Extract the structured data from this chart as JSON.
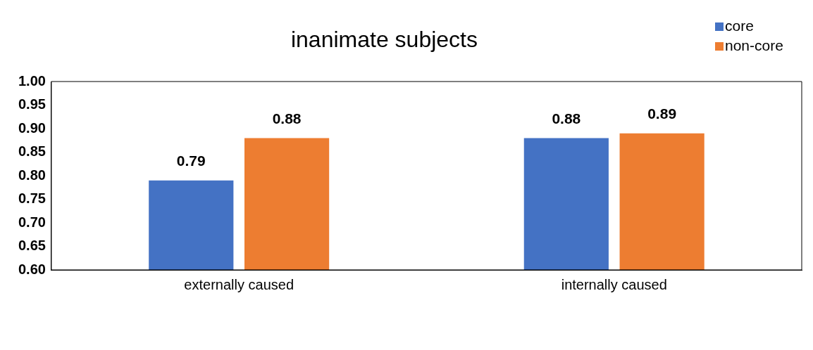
{
  "chart_data": {
    "type": "bar",
    "title": "inanimate subjects",
    "categories": [
      "externally caused",
      "internally caused"
    ],
    "series": [
      {
        "name": "core",
        "color": "#4472c4",
        "values": [
          0.79,
          0.88
        ]
      },
      {
        "name": "non-core",
        "color": "#ed7d31",
        "values": [
          0.88,
          0.89
        ]
      }
    ],
    "ylim": [
      0.6,
      1.0
    ],
    "yticks": [
      {
        "value": 0.6,
        "label": "0.60"
      },
      {
        "value": 0.65,
        "label": "0.65"
      },
      {
        "value": 0.7,
        "label": "0.70"
      },
      {
        "value": 0.75,
        "label": "0.75"
      },
      {
        "value": 0.8,
        "label": "0.80"
      },
      {
        "value": 0.85,
        "label": "0.85"
      },
      {
        "value": 0.9,
        "label": "0.90"
      },
      {
        "value": 0.95,
        "label": "0.95"
      },
      {
        "value": 1.0,
        "label": "1.00"
      }
    ],
    "grid": false,
    "legend": "top right",
    "data_labels": true
  }
}
